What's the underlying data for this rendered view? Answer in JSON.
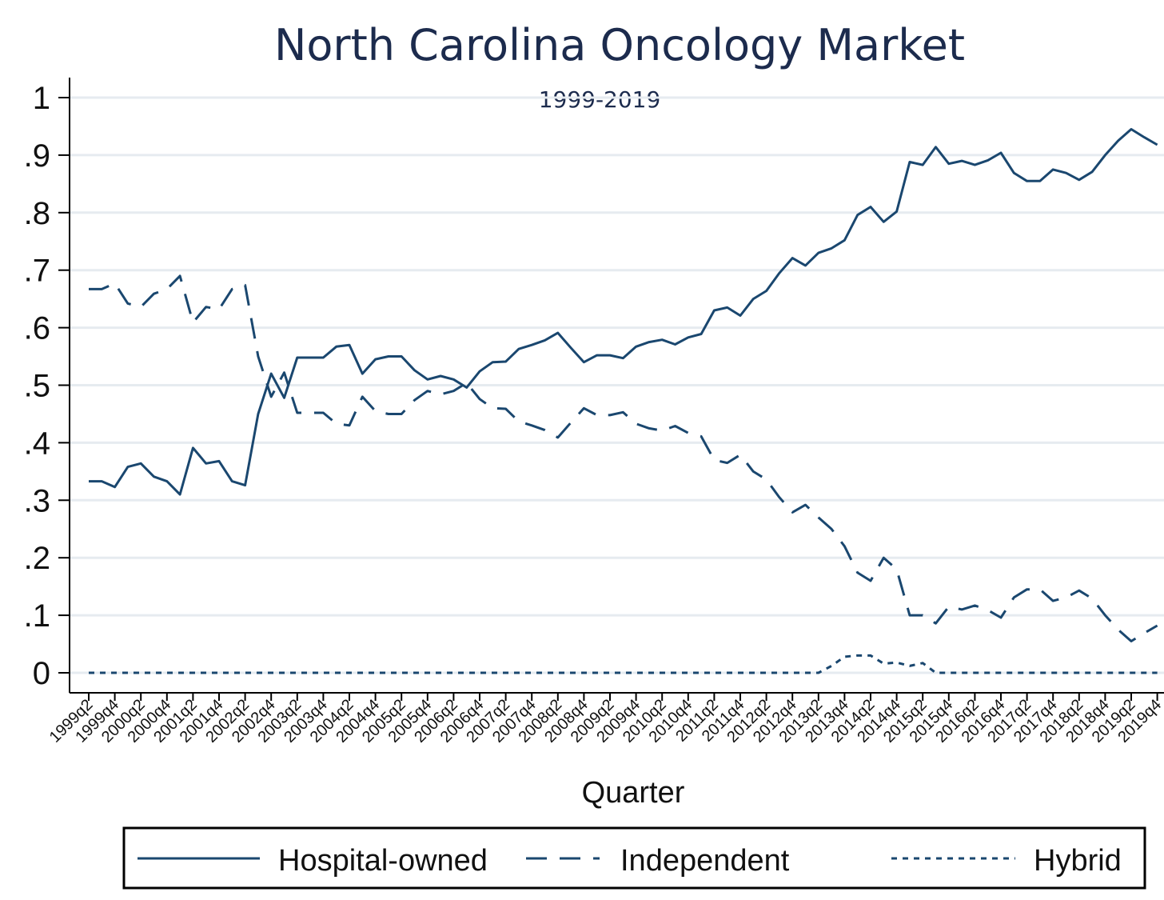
{
  "chart_data": {
    "type": "line",
    "title": "North Carolina Oncology Market",
    "subtitle": "1999-2019",
    "xlabel": "Quarter",
    "ylabel": "",
    "ylim": [
      0,
      1
    ],
    "yticks": [
      0,
      0.1,
      0.2,
      0.3,
      0.4,
      0.5,
      0.6,
      0.7,
      0.8,
      0.9,
      1
    ],
    "ytick_labels": [
      "0",
      ".1",
      ".2",
      ".3",
      ".4",
      ".5",
      ".6",
      ".7",
      ".8",
      ".9",
      "1"
    ],
    "grid": true,
    "legend_position": "bottom",
    "line_color": "#1a476f",
    "categories": [
      "1999q2",
      "1999q3",
      "1999q4",
      "2000q1",
      "2000q2",
      "2000q3",
      "2000q4",
      "2001q1",
      "2001q2",
      "2001q3",
      "2001q4",
      "2002q1",
      "2002q2",
      "2002q3",
      "2002q4",
      "2003q1",
      "2003q2",
      "2003q3",
      "2003q4",
      "2004q1",
      "2004q2",
      "2004q3",
      "2004q4",
      "2005q1",
      "2005q2",
      "2005q3",
      "2005q4",
      "2006q1",
      "2006q2",
      "2006q3",
      "2006q4",
      "2007q1",
      "2007q2",
      "2007q3",
      "2007q4",
      "2008q1",
      "2008q2",
      "2008q3",
      "2008q4",
      "2009q1",
      "2009q2",
      "2009q3",
      "2009q4",
      "2010q1",
      "2010q2",
      "2010q3",
      "2010q4",
      "2011q1",
      "2011q2",
      "2011q3",
      "2011q4",
      "2012q1",
      "2012q2",
      "2012q3",
      "2012q4",
      "2013q1",
      "2013q2",
      "2013q3",
      "2013q4",
      "2014q1",
      "2014q2",
      "2014q3",
      "2014q4",
      "2015q1",
      "2015q2",
      "2015q3",
      "2015q4",
      "2016q1",
      "2016q2",
      "2016q3",
      "2016q4",
      "2017q1",
      "2017q2",
      "2017q3",
      "2017q4",
      "2018q1",
      "2018q2",
      "2018q3",
      "2018q4",
      "2019q1",
      "2019q2",
      "2019q3",
      "2019q4"
    ],
    "tick_labels": [
      "1999q2",
      "1999q4",
      "2000q2",
      "2000q4",
      "2001q2",
      "2001q4",
      "2002q2",
      "2002q4",
      "2003q2",
      "2003q4",
      "2004q2",
      "2004q4",
      "2005q2",
      "2005q4",
      "2006q2",
      "2006q4",
      "2007q2",
      "2007q4",
      "2008q2",
      "2008q4",
      "2009q2",
      "2009q4",
      "2010q2",
      "2010q4",
      "2011q2",
      "2011q4",
      "2012q2",
      "2012q4",
      "2013q2",
      "2013q4",
      "2014q2",
      "2014q4",
      "2015q2",
      "2015q4",
      "2016q2",
      "2016q4",
      "2017q2",
      "2017q4",
      "2018q2",
      "2018q4",
      "2019q2",
      "2019q4"
    ],
    "series": [
      {
        "name": "Hospital-owned",
        "style": "solid",
        "values": [
          0.333,
          0.333,
          0.323,
          0.358,
          0.364,
          0.341,
          0.333,
          0.31,
          0.391,
          0.364,
          0.368,
          0.333,
          0.326,
          0.45,
          0.52,
          0.478,
          0.548,
          0.548,
          0.548,
          0.567,
          0.57,
          0.52,
          0.545,
          0.55,
          0.55,
          0.526,
          0.51,
          0.516,
          0.51,
          0.496,
          0.524,
          0.54,
          0.541,
          0.563,
          0.57,
          0.578,
          0.591,
          0.565,
          0.54,
          0.552,
          0.552,
          0.547,
          0.567,
          0.575,
          0.579,
          0.571,
          0.583,
          0.589,
          0.63,
          0.635,
          0.621,
          0.65,
          0.664,
          0.695,
          0.721,
          0.708,
          0.73,
          0.738,
          0.752,
          0.796,
          0.81,
          0.784,
          0.802,
          0.888,
          0.883,
          0.914,
          0.885,
          0.89,
          0.883,
          0.891,
          0.904,
          0.869,
          0.855,
          0.855,
          0.875,
          0.869,
          0.857,
          0.871,
          0.9,
          0.925,
          0.945,
          0.931,
          0.918
        ]
      },
      {
        "name": "Independent",
        "style": "dash",
        "values": [
          0.667,
          0.667,
          0.677,
          0.642,
          0.636,
          0.659,
          0.667,
          0.69,
          0.609,
          0.636,
          0.632,
          0.667,
          0.674,
          0.55,
          0.48,
          0.522,
          0.452,
          0.452,
          0.452,
          0.433,
          0.43,
          0.48,
          0.455,
          0.45,
          0.45,
          0.474,
          0.49,
          0.484,
          0.49,
          0.504,
          0.476,
          0.46,
          0.459,
          0.437,
          0.43,
          0.422,
          0.409,
          0.435,
          0.46,
          0.448,
          0.448,
          0.453,
          0.433,
          0.425,
          0.421,
          0.429,
          0.417,
          0.411,
          0.37,
          0.365,
          0.379,
          0.35,
          0.336,
          0.305,
          0.279,
          0.292,
          0.27,
          0.25,
          0.22,
          0.174,
          0.16,
          0.2,
          0.18,
          0.1,
          0.1,
          0.086,
          0.115,
          0.11,
          0.117,
          0.109,
          0.096,
          0.131,
          0.145,
          0.145,
          0.125,
          0.131,
          0.143,
          0.129,
          0.1,
          0.075,
          0.055,
          0.069,
          0.082
        ]
      },
      {
        "name": "Hybrid",
        "style": "dot",
        "values": [
          0,
          0,
          0,
          0,
          0,
          0,
          0,
          0,
          0,
          0,
          0,
          0,
          0,
          0,
          0,
          0,
          0,
          0,
          0,
          0,
          0,
          0,
          0,
          0,
          0,
          0,
          0,
          0,
          0,
          0,
          0,
          0,
          0,
          0,
          0,
          0,
          0,
          0,
          0,
          0,
          0,
          0,
          0,
          0,
          0,
          0,
          0,
          0,
          0,
          0,
          0,
          0,
          0,
          0,
          0,
          0,
          0,
          0.012,
          0.028,
          0.03,
          0.03,
          0.016,
          0.018,
          0.012,
          0.017,
          0,
          0,
          0,
          0,
          0,
          0,
          0,
          0,
          0,
          0,
          0,
          0,
          0,
          0,
          0,
          0,
          0,
          0
        ]
      }
    ]
  }
}
